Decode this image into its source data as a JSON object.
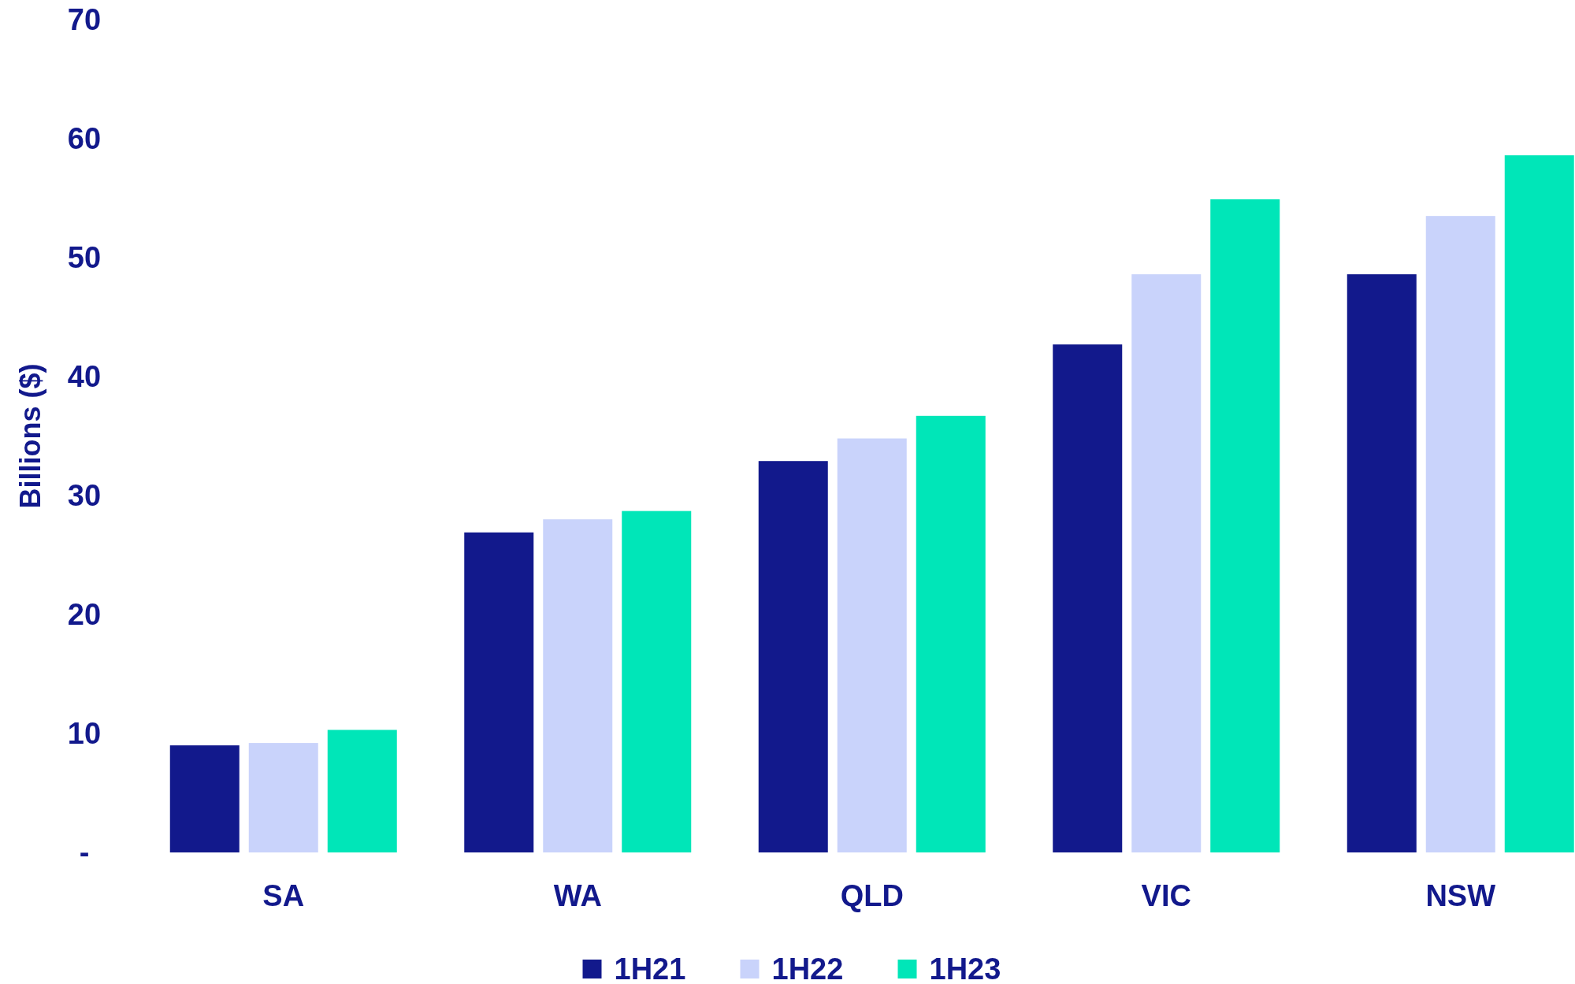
{
  "chart_data": {
    "type": "bar",
    "ylabel": "Billions ($)",
    "categories": [
      "SA",
      "WA",
      "QLD",
      "VIC",
      "NSW"
    ],
    "series": [
      {
        "name": "1H21",
        "color": "#12198c",
        "values": [
          9.0,
          26.9,
          32.9,
          42.7,
          48.6
        ]
      },
      {
        "name": "1H22",
        "color": "#c9d3fb",
        "values": [
          9.2,
          28.0,
          34.8,
          48.6,
          53.5
        ]
      },
      {
        "name": "1H23",
        "color": "#00e6b8",
        "values": [
          10.3,
          28.7,
          36.7,
          54.9,
          58.6
        ]
      }
    ],
    "ylim": [
      0,
      70
    ],
    "yticks": [
      {
        "value": 0,
        "label": "-"
      },
      10,
      20,
      30,
      40,
      50,
      60,
      70
    ],
    "grid": false,
    "legend": "bottom"
  }
}
